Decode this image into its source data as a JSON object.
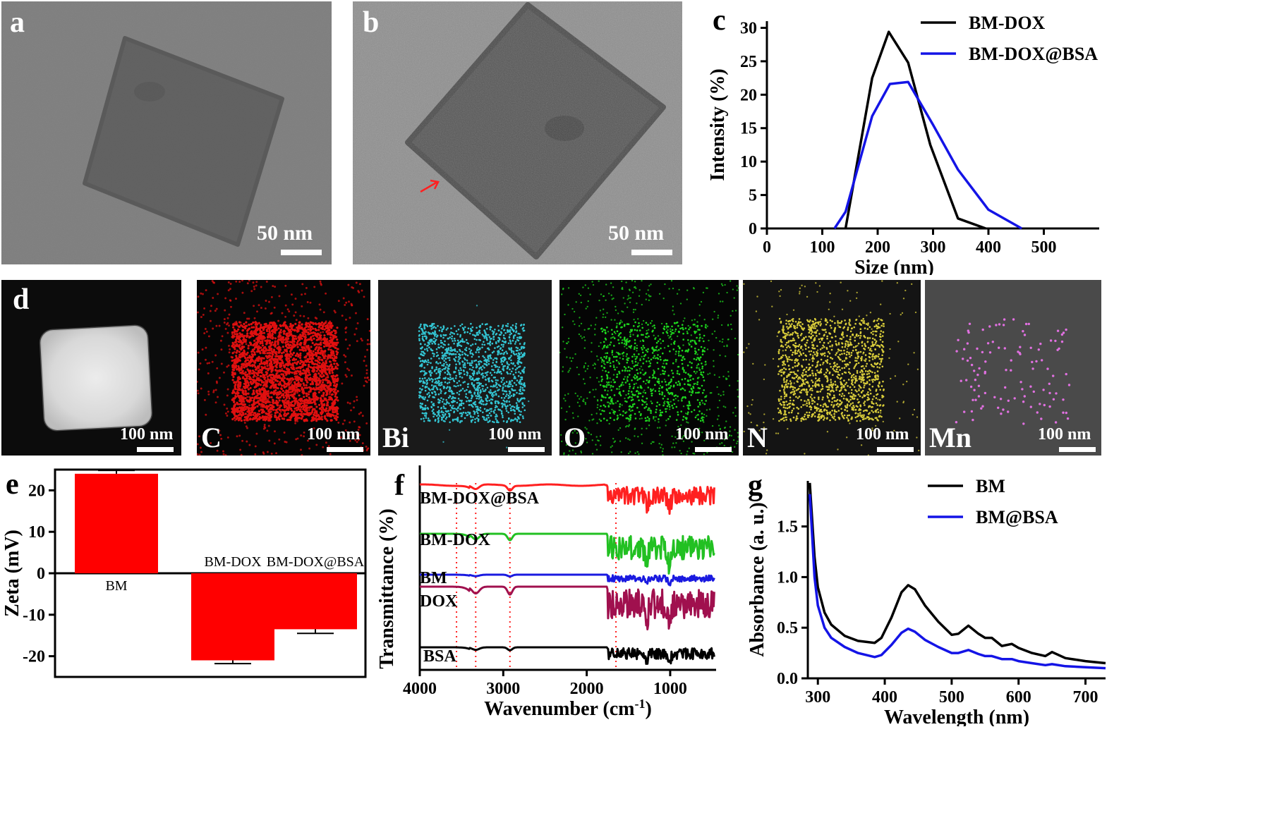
{
  "panels": {
    "a": {
      "label": "a",
      "scalebar": "50 nm"
    },
    "b": {
      "label": "b",
      "scalebar": "50 nm"
    },
    "c": {
      "label": "c",
      "chart_data": {
        "type": "line",
        "xlabel": "Size (nm)",
        "ylabel": "Intensity (%)",
        "xlim": [
          0,
          600
        ],
        "ylim": [
          0,
          31
        ],
        "xticks": [
          0,
          100,
          200,
          300,
          400,
          500
        ],
        "yticks": [
          0,
          5,
          10,
          15,
          20,
          25,
          30
        ],
        "legend": "top-right",
        "series": [
          {
            "name": "BM-DOX",
            "color": "#000000",
            "x": [
              142,
              190,
              220,
              255,
              295,
              345,
              395
            ],
            "y": [
              0,
              22.5,
              29.4,
              24.8,
              12.5,
              1.5,
              0
            ]
          },
          {
            "name": "BM-DOX@BSA",
            "color": "#1414e6",
            "x": [
              122,
              142,
              190,
              222,
              255,
              300,
              345,
              400,
              460
            ],
            "y": [
              0,
              2.5,
              16.8,
              21.6,
              21.9,
              15.5,
              8.8,
              2.8,
              0
            ]
          }
        ]
      }
    },
    "d": {
      "label": "d",
      "maps": [
        {
          "element": "",
          "scalebar": "100 nm",
          "dot_color": ""
        },
        {
          "element": "C",
          "scalebar": "100 nm",
          "dot_color": "#e01010"
        },
        {
          "element": "Bi",
          "scalebar": "100 nm",
          "dot_color": "#33c6d4"
        },
        {
          "element": "O",
          "scalebar": "100 nm",
          "dot_color": "#1ed81e"
        },
        {
          "element": "N",
          "scalebar": "100 nm",
          "dot_color": "#d8cc3a"
        },
        {
          "element": "Mn",
          "scalebar": "100 nm",
          "dot_color": "#e070e0"
        }
      ]
    },
    "e": {
      "label": "e",
      "chart_data": {
        "type": "bar",
        "ylabel": "Zeta (mV)",
        "ylim": [
          -25,
          25
        ],
        "yticks": [
          -20,
          -10,
          0,
          10,
          20
        ],
        "categories": [
          "BM",
          "BM-DOX",
          "BM-DOX@BSA"
        ],
        "values": [
          24.0,
          -21.0,
          -13.5
        ],
        "errors": [
          0.8,
          0.8,
          1.0
        ],
        "bar_color": "#ff0000"
      }
    },
    "f": {
      "label": "f",
      "chart_data": {
        "type": "line",
        "xlabel": "Wavenumber (cm",
        "xlabel_sup": "-1",
        "xlabel_tail": ")",
        "ylabel": "Transmittance (%)",
        "xlim": [
          4000,
          450
        ],
        "xticks": [
          4000,
          3000,
          2000,
          1000
        ],
        "reference_lines": [
          3560,
          3330,
          2920,
          1650
        ],
        "series": [
          {
            "name": "BM-DOX@BSA",
            "color": "#ff2020"
          },
          {
            "name": "BM-DOX",
            "color": "#22c022"
          },
          {
            "name": "BM",
            "color": "#1a1ae0"
          },
          {
            "name": "DOX",
            "color": "#a0104e"
          },
          {
            "name": "BSA",
            "color": "#000000"
          }
        ]
      }
    },
    "g": {
      "label": "g",
      "chart_data": {
        "type": "line",
        "xlabel": "Wavelength (nm)",
        "ylabel": "Absorbance (a. u.)",
        "xlim": [
          285,
          730
        ],
        "ylim": [
          0,
          1.95
        ],
        "xticks": [
          300,
          400,
          500,
          600,
          700
        ],
        "yticks": [
          0.0,
          0.5,
          1.0,
          1.5
        ],
        "legend": "top-right",
        "series": [
          {
            "name": "BM",
            "color": "#000000",
            "x": [
              288,
              295,
              300,
              310,
              320,
              340,
              360,
              385,
              395,
              410,
              425,
              435,
              445,
              460,
              480,
              500,
              510,
              525,
              540,
              550,
              560,
              575,
              590,
              600,
              620,
              640,
              650,
              670,
              700,
              730
            ],
            "y": [
              1.93,
              1.2,
              0.9,
              0.65,
              0.53,
              0.42,
              0.37,
              0.35,
              0.4,
              0.6,
              0.85,
              0.92,
              0.88,
              0.72,
              0.56,
              0.43,
              0.44,
              0.52,
              0.44,
              0.4,
              0.4,
              0.32,
              0.34,
              0.3,
              0.25,
              0.22,
              0.26,
              0.2,
              0.17,
              0.15
            ]
          },
          {
            "name": "BM@BSA",
            "color": "#1414e6",
            "x": [
              288,
              295,
              300,
              310,
              320,
              340,
              360,
              385,
              395,
              410,
              425,
              435,
              445,
              460,
              480,
              500,
              510,
              525,
              540,
              550,
              560,
              575,
              590,
              600,
              620,
              640,
              650,
              670,
              700,
              730
            ],
            "y": [
              1.82,
              1.0,
              0.72,
              0.5,
              0.4,
              0.31,
              0.25,
              0.21,
              0.23,
              0.33,
              0.45,
              0.49,
              0.46,
              0.38,
              0.31,
              0.25,
              0.25,
              0.28,
              0.24,
              0.22,
              0.22,
              0.19,
              0.19,
              0.17,
              0.15,
              0.13,
              0.14,
              0.12,
              0.11,
              0.1
            ]
          }
        ]
      }
    }
  }
}
